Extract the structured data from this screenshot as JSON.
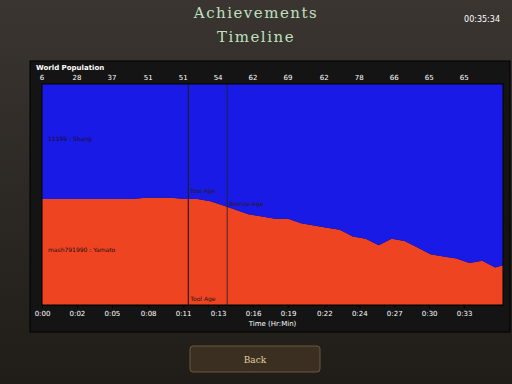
{
  "header": {
    "title": "Achievements",
    "subtitle": "Timeline",
    "clock": "00:35:34"
  },
  "chart_data": {
    "type": "area",
    "title": "World Population",
    "x_label": "Time (Hr:Min)",
    "stacked": true,
    "tick_labels": "x",
    "x": [
      0,
      1,
      2,
      3,
      4,
      5,
      6,
      7,
      8,
      9,
      10,
      11,
      12,
      13,
      14,
      15,
      16,
      17,
      18,
      19,
      20,
      21,
      22,
      23,
      24,
      25,
      26,
      27,
      28,
      29,
      30,
      31,
      32,
      33,
      34,
      35,
      35.6
    ],
    "series": [
      {
        "name": "mash791990 : Yamato",
        "color": "#ee4422",
        "values": [
          48,
          48,
          48,
          48,
          48,
          48,
          48,
          48,
          48.5,
          48.5,
          48.5,
          48,
          48,
          47,
          45,
          43,
          41,
          40,
          39,
          39,
          37,
          36,
          35,
          34,
          31,
          30,
          27,
          30,
          29,
          26,
          23,
          22,
          21,
          19,
          20,
          17,
          18
        ]
      },
      {
        "name": "11199 : Shang",
        "color": "#1a1ae6",
        "values": [
          52,
          52,
          52,
          52,
          52,
          52,
          52,
          52,
          51.5,
          51.5,
          51.5,
          52,
          52,
          53,
          55,
          57,
          59,
          60,
          61,
          61,
          63,
          64,
          65,
          66,
          69,
          70,
          73,
          70,
          71,
          74,
          77,
          78,
          79,
          81,
          80,
          83,
          82
        ]
      }
    ],
    "xlim": [
      0,
      35.6
    ],
    "xticks": [
      {
        "value": 0,
        "label": "0:00"
      },
      {
        "value": 2.7,
        "label": "0:02"
      },
      {
        "value": 5.4,
        "label": "0:05"
      },
      {
        "value": 8.2,
        "label": "0:08"
      },
      {
        "value": 10.9,
        "label": "0:11"
      },
      {
        "value": 13.6,
        "label": "0:13"
      },
      {
        "value": 16.3,
        "label": "0:16"
      },
      {
        "value": 19,
        "label": "0:19"
      },
      {
        "value": 21.8,
        "label": "0:22"
      },
      {
        "value": 24.5,
        "label": "0:24"
      },
      {
        "value": 27.2,
        "label": "0:27"
      },
      {
        "value": 29.9,
        "label": "0:30"
      },
      {
        "value": 32.6,
        "label": "0:33"
      }
    ],
    "ylim": [
      0,
      100
    ],
    "world_population": [
      6,
      28,
      37,
      51,
      51,
      54,
      62,
      69,
      62,
      78,
      66,
      65,
      65
    ],
    "annotations": [
      {
        "x": 11.3,
        "y": 50,
        "text": "Tool Age"
      },
      {
        "x": 14.3,
        "y": 44,
        "text": "Bronze Age"
      },
      {
        "x": 11.3,
        "y": 1,
        "text": "Tool Age"
      }
    ]
  },
  "footer": {
    "button": "Back"
  }
}
